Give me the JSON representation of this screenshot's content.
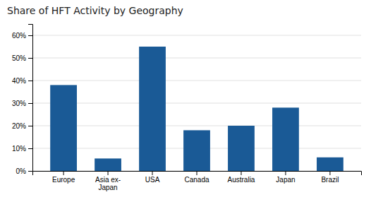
{
  "chart_data": {
    "type": "bar",
    "title": "Share of HFT Activity by Geography",
    "categories": [
      "Europe",
      "Asia ex-\nJapan",
      "USA",
      "Canada",
      "Australia",
      "Japan",
      "Brazil"
    ],
    "values": [
      0.38,
      0.055,
      0.55,
      0.18,
      0.2,
      0.28,
      0.06
    ],
    "color": "#1a5a96",
    "ylim": [
      0,
      0.65
    ],
    "yticks": [
      {
        "value": 0.0,
        "label": "0%"
      },
      {
        "value": 0.1,
        "label": "10%"
      },
      {
        "value": 0.2,
        "label": "20%"
      },
      {
        "value": 0.3,
        "label": "30%"
      },
      {
        "value": 0.4,
        "label": "40%"
      },
      {
        "value": 0.5,
        "label": "50%"
      },
      {
        "value": 0.6,
        "label": "60%"
      }
    ],
    "grid": true
  }
}
